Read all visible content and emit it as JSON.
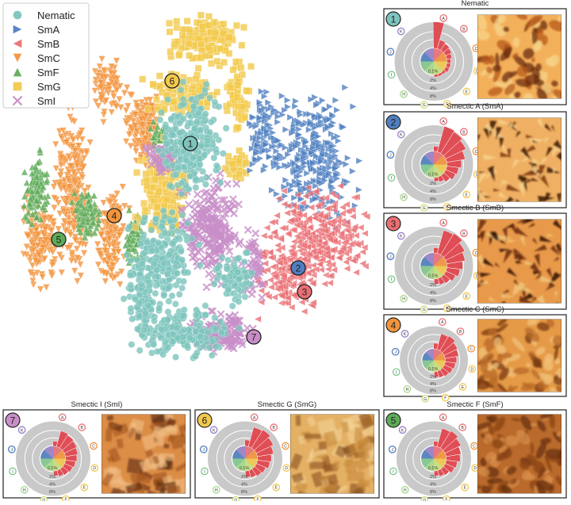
{
  "chart_data": {
    "type": "scatter",
    "legend_position": "top-left",
    "legend": [
      {
        "label": "Nematic",
        "marker": "circle",
        "color": "#7dc4bd"
      },
      {
        "label": "SmA",
        "marker": "triangle-right",
        "color": "#4f7fc0"
      },
      {
        "label": "SmB",
        "marker": "triangle-left",
        "color": "#ea6f74"
      },
      {
        "label": "SmC",
        "marker": "triangle-down",
        "color": "#f2943c"
      },
      {
        "label": "SmF",
        "marker": "triangle-up",
        "color": "#5fab59"
      },
      {
        "label": "SmG",
        "marker": "square",
        "color": "#f2c94c"
      },
      {
        "label": "SmI",
        "marker": "x",
        "color": "#c88ec8"
      }
    ],
    "cluster_labels": [
      {
        "n": "1",
        "color": "#7dc4bd"
      },
      {
        "n": "2",
        "color": "#4f7fc0"
      },
      {
        "n": "3",
        "color": "#ea6f74"
      },
      {
        "n": "4",
        "color": "#f2943c"
      },
      {
        "n": "5",
        "color": "#5fab59"
      },
      {
        "n": "6",
        "color": "#f2c94c"
      },
      {
        "n": "7",
        "color": "#c88ec8"
      }
    ],
    "radial_ticks": [
      "0.1%",
      "2%",
      "4%",
      "8%"
    ],
    "category_letters": [
      "A",
      "B",
      "C",
      "D",
      "E",
      "F",
      "G",
      "H",
      "I",
      "J",
      "K"
    ],
    "panels": [
      {
        "n": "1",
        "title": "Nematic",
        "color": "#7dc4bd",
        "bars": [
          1.0,
          0.35,
          0.3,
          0.25,
          0.2,
          0.15,
          0.15,
          0.15,
          0.1,
          0.1,
          0.1
        ],
        "texture": "nematic"
      },
      {
        "n": "2",
        "title": "Smectic A (SmA)",
        "color": "#4f7fc0",
        "bars": [
          0.2,
          1.0,
          0.95,
          0.85,
          0.7,
          0.55,
          0.45,
          0.4,
          0.3,
          0.2,
          0.15
        ],
        "texture": "sma"
      },
      {
        "n": "3",
        "title": "Smectic B (SmB)",
        "color": "#ea6f74",
        "bars": [
          0.2,
          0.9,
          0.95,
          0.8,
          0.7,
          0.6,
          0.5,
          0.4,
          0.3,
          0.25,
          0.2
        ],
        "texture": "smb"
      },
      {
        "n": "4",
        "title": "Smectic C (SmC)",
        "color": "#f2943c",
        "bars": [
          0.25,
          0.7,
          0.75,
          0.65,
          0.6,
          0.5,
          0.45,
          0.4,
          0.35,
          0.3,
          0.25
        ],
        "texture": "smc"
      },
      {
        "n": "7",
        "title": "Smectic I (SmI)",
        "color": "#c88ec8",
        "bars": [
          0.2,
          0.65,
          0.6,
          0.55,
          0.5,
          0.45,
          0.4,
          0.35,
          0.3,
          0.25,
          0.2
        ],
        "texture": "smi"
      },
      {
        "n": "6",
        "title": "Smectic G (SmG)",
        "color": "#f2c94c",
        "bars": [
          0.25,
          0.8,
          0.85,
          0.75,
          0.65,
          0.55,
          0.5,
          0.4,
          0.35,
          0.3,
          0.25
        ],
        "texture": "smg"
      },
      {
        "n": "5",
        "title": "Smectic F (SmF)",
        "color": "#5fab59",
        "bars": [
          0.2,
          0.75,
          0.8,
          0.7,
          0.6,
          0.55,
          0.45,
          0.4,
          0.3,
          0.25,
          0.2
        ],
        "texture": "smf"
      }
    ],
    "letter_colors": {
      "A": "#ea6f74",
      "B": "#ea6f74",
      "C": "#f2943c",
      "D": "#f2c94c",
      "E": "#f2c94c",
      "F": "#f2c94c",
      "G": "#c8e07a",
      "H": "#a7d98a",
      "I": "#7fc88d",
      "J": "#4f7fc0",
      "K": "#9a7fc8"
    }
  }
}
